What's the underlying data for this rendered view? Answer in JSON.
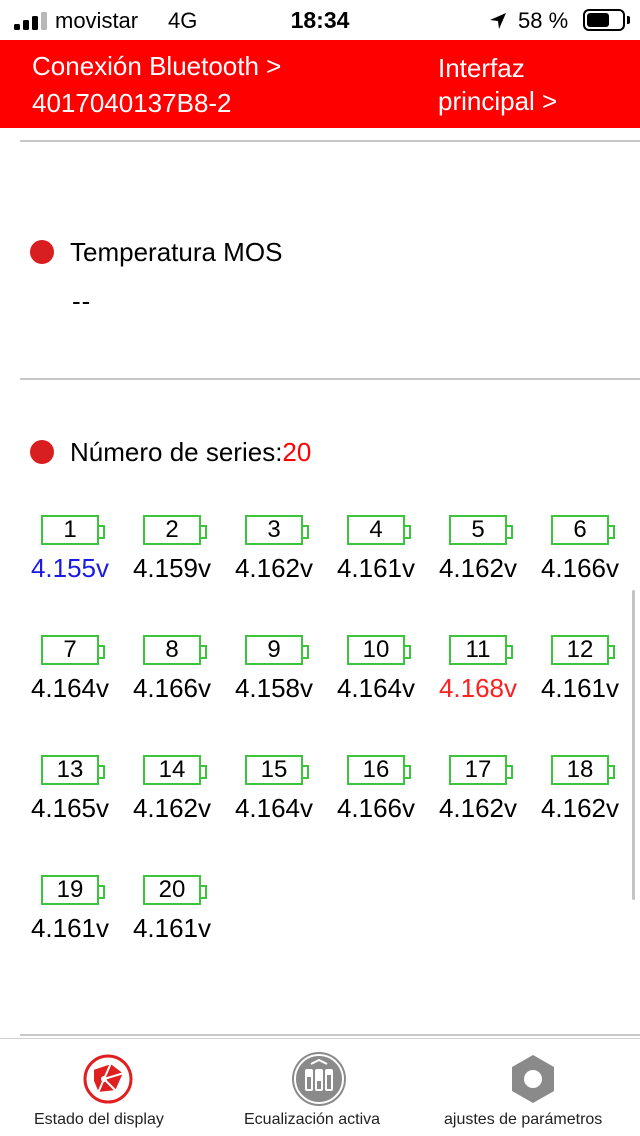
{
  "status_bar": {
    "carrier": "movistar",
    "network": "4G",
    "time": "18:34",
    "battery_percent": "58 %",
    "battery_level": 0.58,
    "signal_bars": 3
  },
  "header": {
    "connection_line1": "Conexión Bluetooth >",
    "connection_line2": "4017040137B8-2",
    "main_line1": "Interfaz",
    "main_line2": "principal >"
  },
  "mos": {
    "label": "Temperatura MOS",
    "value": "--"
  },
  "series": {
    "label": "Número de series:",
    "count": "20"
  },
  "cells": [
    {
      "num": "1",
      "voltage": "4.155v",
      "color": "#1a1ae6"
    },
    {
      "num": "2",
      "voltage": "4.159v",
      "color": "#000000"
    },
    {
      "num": "3",
      "voltage": "4.162v",
      "color": "#000000"
    },
    {
      "num": "4",
      "voltage": "4.161v",
      "color": "#000000"
    },
    {
      "num": "5",
      "voltage": "4.162v",
      "color": "#000000"
    },
    {
      "num": "6",
      "voltage": "4.166v",
      "color": "#000000"
    },
    {
      "num": "7",
      "voltage": "4.164v",
      "color": "#000000"
    },
    {
      "num": "8",
      "voltage": "4.166v",
      "color": "#000000"
    },
    {
      "num": "9",
      "voltage": "4.158v",
      "color": "#000000"
    },
    {
      "num": "10",
      "voltage": "4.164v",
      "color": "#000000"
    },
    {
      "num": "11",
      "voltage": "4.168v",
      "color": "#ff2020"
    },
    {
      "num": "12",
      "voltage": "4.161v",
      "color": "#000000"
    },
    {
      "num": "13",
      "voltage": "4.165v",
      "color": "#000000"
    },
    {
      "num": "14",
      "voltage": "4.162v",
      "color": "#000000"
    },
    {
      "num": "15",
      "voltage": "4.164v",
      "color": "#000000"
    },
    {
      "num": "16",
      "voltage": "4.166v",
      "color": "#000000"
    },
    {
      "num": "17",
      "voltage": "4.162v",
      "color": "#000000"
    },
    {
      "num": "18",
      "voltage": "4.162v",
      "color": "#000000"
    },
    {
      "num": "19",
      "voltage": "4.161v",
      "color": "#000000"
    },
    {
      "num": "20",
      "voltage": "4.161v",
      "color": "#000000"
    }
  ],
  "colors": {
    "accent": "#ff0000",
    "battery_outline": "#3cc43c",
    "min_voltage": "#1a1ae6",
    "max_voltage": "#ff2020"
  },
  "tabs": [
    {
      "label": "Estado del display",
      "icon": "display-status-icon"
    },
    {
      "label": "Ecualización activa",
      "icon": "balancing-icon"
    },
    {
      "label": "ajustes de parámetros",
      "icon": "settings-hex-icon"
    }
  ]
}
